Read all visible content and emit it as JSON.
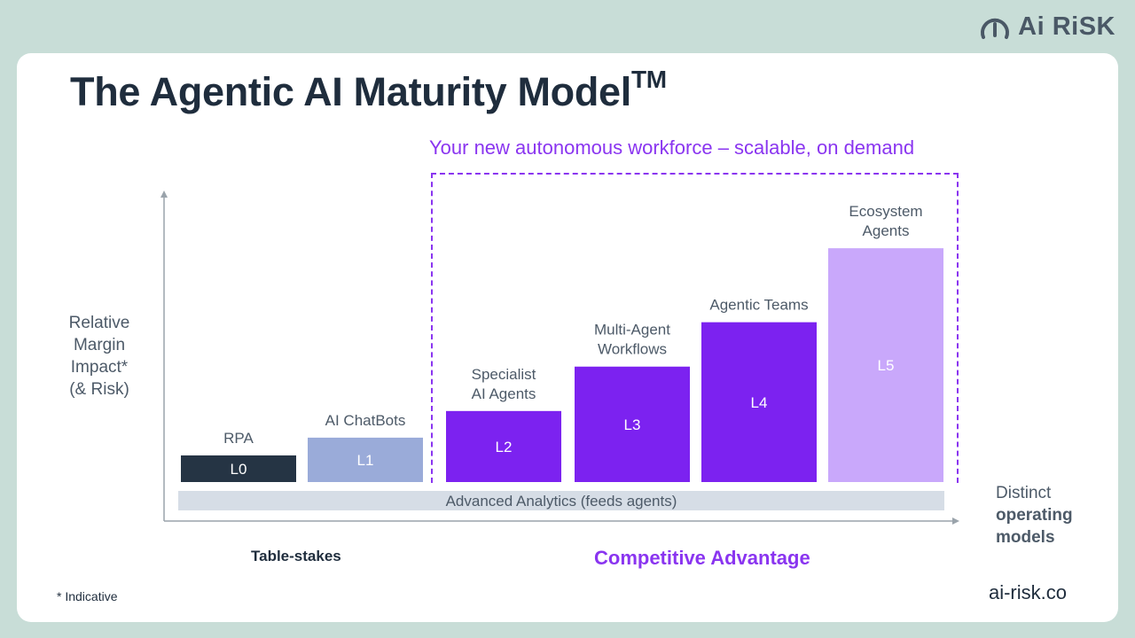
{
  "brand": {
    "name": "Ai RiSK",
    "icon": "gauge-icon"
  },
  "title": "The Agentic AI Maturity Model",
  "title_mark": "TM",
  "subtitle": "Your new autonomous workforce – scalable, on demand",
  "y_axis_label": [
    "Relative",
    "Margin",
    "Impact*",
    "(& Risk)"
  ],
  "x_axis_label": {
    "line1": "Distinct",
    "line2": "operating",
    "line3": "models"
  },
  "zones": {
    "left": "Table-stakes",
    "right": "Competitive Advantage"
  },
  "footnote": "* Indicative",
  "site": "ai-risk.co",
  "colors": {
    "navy": "#253444",
    "slate_blue": "#9aabd9",
    "purple": "#7c22f0",
    "lavender": "#c9a8fb",
    "analytics_band": "#d6dde6",
    "accent": "#8a35f0"
  },
  "chart_data": {
    "type": "bar",
    "title": "The Agentic AI Maturity Model",
    "ylabel": "Relative Margin Impact* (& Risk)",
    "xlabel": "Distinct operating models",
    "ylim": [
      0,
      100
    ],
    "categories": [
      "L0",
      "L1",
      "L2",
      "L3",
      "L4",
      "L5"
    ],
    "names": [
      [
        "RPA"
      ],
      [
        "AI ChatBots"
      ],
      [
        "Specialist",
        "AI Agents"
      ],
      [
        "Multi-Agent",
        "Workflows"
      ],
      [
        "Agentic Teams"
      ],
      [
        "Ecosystem",
        "Agents"
      ]
    ],
    "values": [
      9,
      15,
      24,
      39,
      54,
      79
    ],
    "bar_colors": [
      "#253444",
      "#9aabd9",
      "#7c22f0",
      "#7c22f0",
      "#7c22f0",
      "#c9a8fb"
    ],
    "base_band": {
      "label": "Advanced Analytics (feeds agents)"
    }
  }
}
